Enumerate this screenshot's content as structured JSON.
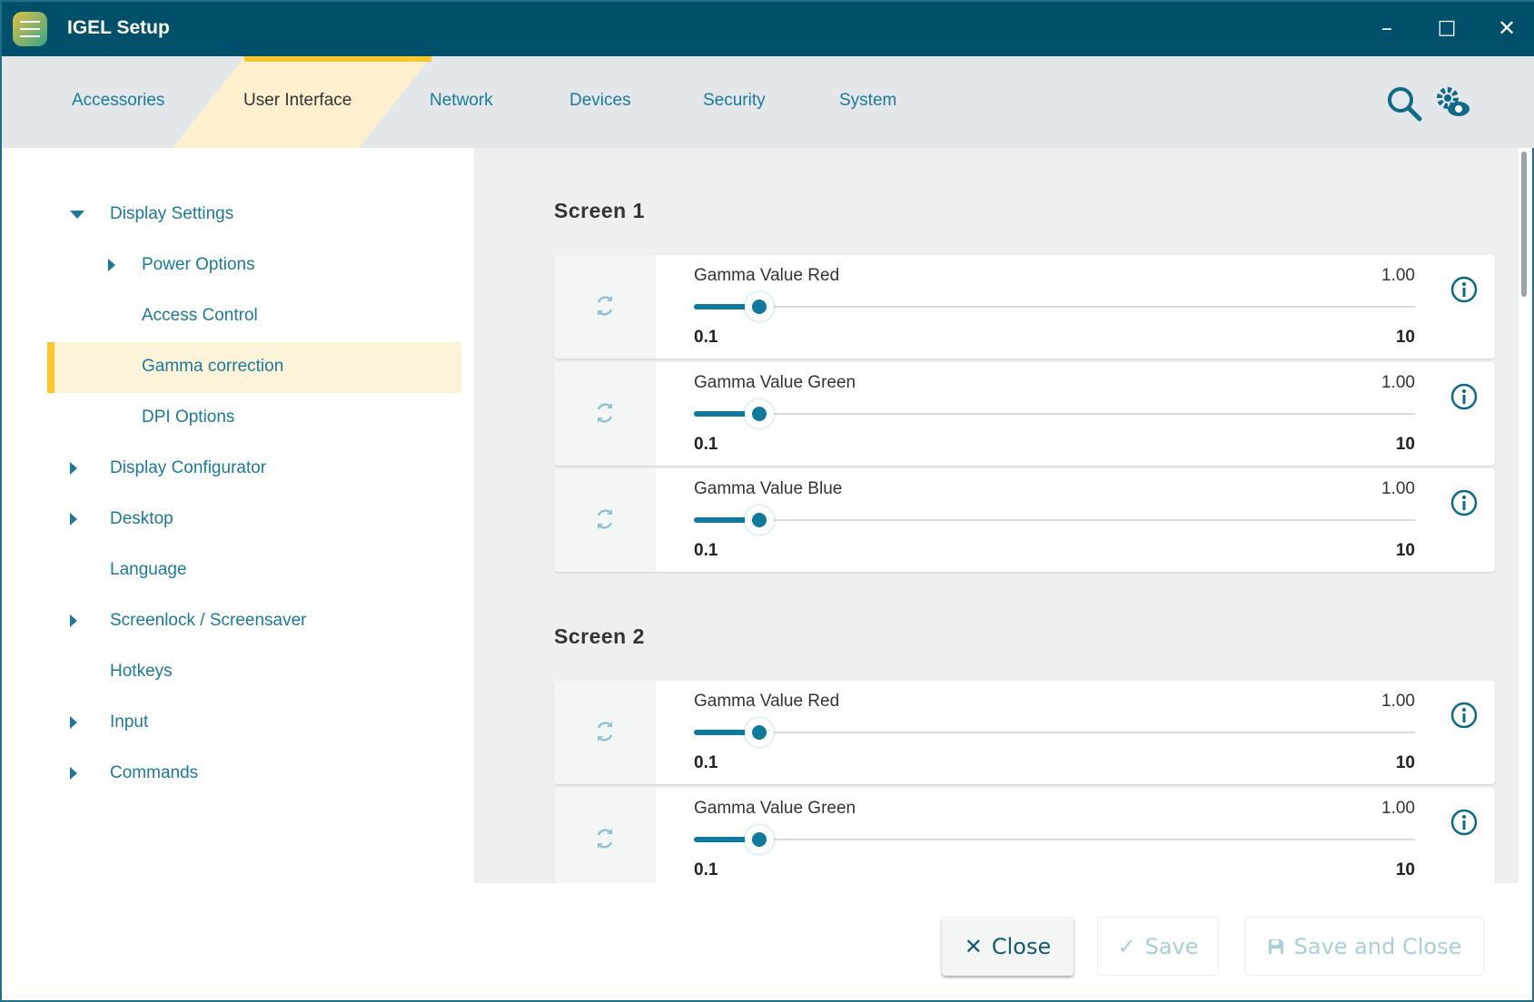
{
  "window": {
    "title": "IGEL Setup",
    "minimize": "–",
    "maximize": "□",
    "close": "✕"
  },
  "tabs": [
    {
      "label": "Accessories",
      "selected": false
    },
    {
      "label": "User Interface",
      "selected": true
    },
    {
      "label": "Network",
      "selected": false
    },
    {
      "label": "Devices",
      "selected": false
    },
    {
      "label": "Security",
      "selected": false
    },
    {
      "label": "System",
      "selected": false
    }
  ],
  "toolbar": {
    "icons": [
      "search-icon",
      "gear-eye-icon"
    ]
  },
  "tree": [
    {
      "label": "Display Settings",
      "level": 1,
      "arrow": "down"
    },
    {
      "label": "Power Options",
      "level": 2,
      "arrow": "right"
    },
    {
      "label": "Access Control",
      "level": 2,
      "arrow": ""
    },
    {
      "label": "Gamma correction",
      "level": 2,
      "arrow": "",
      "selected": true
    },
    {
      "label": "DPI Options",
      "level": 2,
      "arrow": ""
    },
    {
      "label": "Display Configurator",
      "level": 1,
      "arrow": "right"
    },
    {
      "label": "Desktop",
      "level": 1,
      "arrow": "right"
    },
    {
      "label": "Language",
      "level": 1,
      "arrow": ""
    },
    {
      "label": "Screenlock / Screensaver",
      "level": 1,
      "arrow": "right"
    },
    {
      "label": "Hotkeys",
      "level": 1,
      "arrow": ""
    },
    {
      "label": "Input",
      "level": 1,
      "arrow": "right"
    },
    {
      "label": "Commands",
      "level": 1,
      "arrow": "right"
    }
  ],
  "sections": [
    {
      "title": "Screen 1",
      "settings": [
        {
          "label": "Gamma Value Red",
          "value": "1.00",
          "min": "0.1",
          "max": "10",
          "level": 1.0
        },
        {
          "label": "Gamma Value Green",
          "value": "1.00",
          "min": "0.1",
          "max": "10",
          "level": 1.0
        },
        {
          "label": "Gamma Value Blue",
          "value": "1.00",
          "min": "0.1",
          "max": "10",
          "level": 1.0
        }
      ]
    },
    {
      "title": "Screen 2",
      "settings": [
        {
          "label": "Gamma Value Red",
          "value": "1.00",
          "min": "0.1",
          "max": "10",
          "level": 1.0
        },
        {
          "label": "Gamma Value Green",
          "value": "1.00",
          "min": "0.1",
          "max": "10",
          "level": 1.0
        }
      ]
    }
  ],
  "footer": {
    "close": "Close",
    "save": "Save",
    "save_and_close": "Save and Close"
  },
  "colors": {
    "titlebar": "#004f6b",
    "accent": "#0f7a9c",
    "selected_tab": "#fcc72c"
  }
}
